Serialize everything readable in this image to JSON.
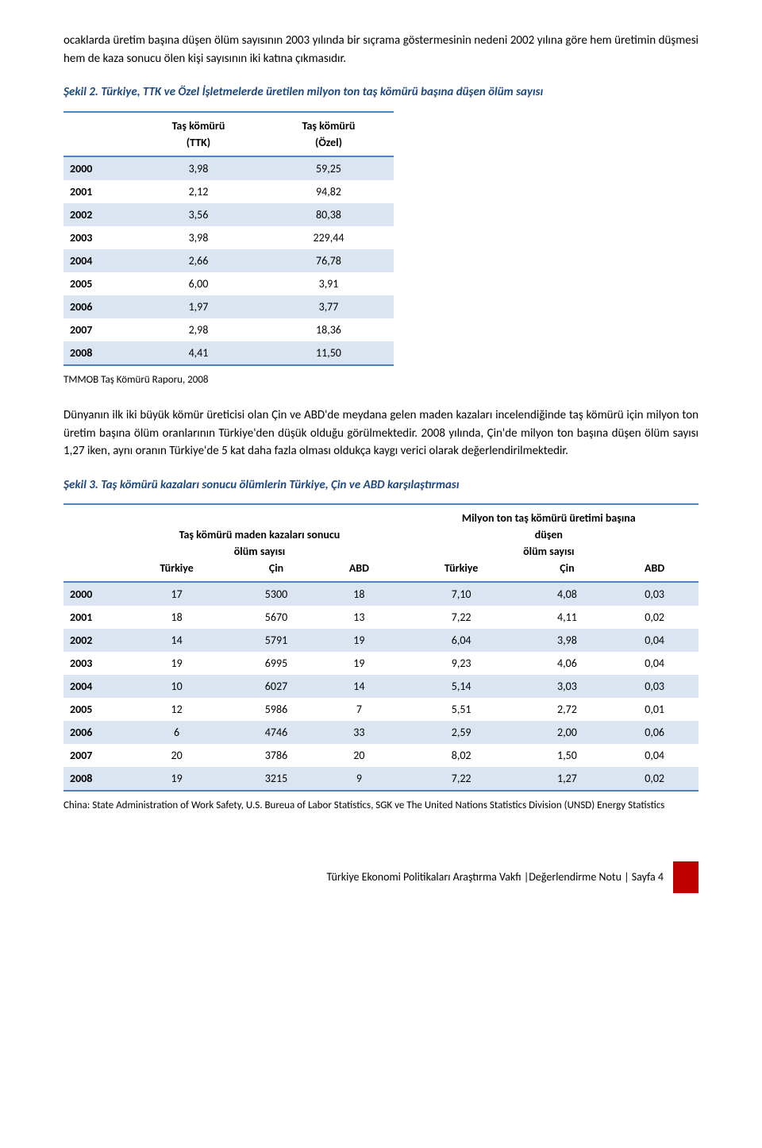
{
  "intro_para": "ocaklarda üretim başına düşen ölüm sayısının 2003 yılında bir sıçrama göstermesinin nedeni 2002 yılına göre hem üretimin düşmesi hem de kaza sonucu ölen kişi sayısının iki katına çıkmasıdır.",
  "fig2": {
    "label": "Şekil 2.",
    "title": " Türkiye, TTK ve Özel İşletmelerde üretilen milyon ton taş kömürü başına düşen ölüm sayısı",
    "col1": "Taş kömürü\n(TTK)",
    "col2": "Taş kömürü\n(Özel)",
    "rows": [
      {
        "year": "2000",
        "a": "3,98",
        "b": "59,25"
      },
      {
        "year": "2001",
        "a": "2,12",
        "b": "94,82"
      },
      {
        "year": "2002",
        "a": "3,56",
        "b": "80,38"
      },
      {
        "year": "2003",
        "a": "3,98",
        "b": "229,44"
      },
      {
        "year": "2004",
        "a": "2,66",
        "b": "76,78"
      },
      {
        "year": "2005",
        "a": "6,00",
        "b": "3,91"
      },
      {
        "year": "2006",
        "a": "1,97",
        "b": "3,77"
      },
      {
        "year": "2007",
        "a": "2,98",
        "b": "18,36"
      },
      {
        "year": "2008",
        "a": "4,41",
        "b": "11,50"
      }
    ],
    "source": "TMMOB Taş Kömürü Raporu, 2008"
  },
  "mid_para": "Dünyanın ilk iki büyük kömür üreticisi olan Çin ve ABD'de meydana gelen maden kazaları incelendiğinde taş kömürü için milyon ton üretim başına ölüm oranlarının Türkiye'den düşük olduğu görülmektedir. 2008 yılında, Çin'de milyon ton başına düşen ölüm sayısı 1,27 iken, aynı oranın Türkiye'de 5 kat daha fazla olması oldukça kaygı verici olarak değerlendirilmektedir.",
  "fig3": {
    "label": "Şekil 3.",
    "title": " Taş kömürü kazaları sonucu ölümlerin Türkiye, Çin ve ABD karşılaştırması",
    "group1": "Taş kömürü maden kazaları sonucu\nölüm sayısı",
    "group2": "Milyon ton taş kömürü üretimi başına\ndüşen\nölüm sayısı",
    "sub": [
      "Türkiye",
      "Çin",
      "ABD",
      "Türkiye",
      "Çin",
      "ABD"
    ],
    "rows": [
      {
        "year": "2000",
        "c": [
          "17",
          "5300",
          "18",
          "7,10",
          "4,08",
          "0,03"
        ]
      },
      {
        "year": "2001",
        "c": [
          "18",
          "5670",
          "13",
          "7,22",
          "4,11",
          "0,02"
        ]
      },
      {
        "year": "2002",
        "c": [
          "14",
          "5791",
          "19",
          "6,04",
          "3,98",
          "0,04"
        ]
      },
      {
        "year": "2003",
        "c": [
          "19",
          "6995",
          "19",
          "9,23",
          "4,06",
          "0,04"
        ]
      },
      {
        "year": "2004",
        "c": [
          "10",
          "6027",
          "14",
          "5,14",
          "3,03",
          "0,03"
        ]
      },
      {
        "year": "2005",
        "c": [
          "12",
          "5986",
          "7",
          "5,51",
          "2,72",
          "0,01"
        ]
      },
      {
        "year": "2006",
        "c": [
          "6",
          "4746",
          "33",
          "2,59",
          "2,00",
          "0,06"
        ]
      },
      {
        "year": "2007",
        "c": [
          "20",
          "3786",
          "20",
          "8,02",
          "1,50",
          "0,04"
        ]
      },
      {
        "year": "2008",
        "c": [
          "19",
          "3215",
          "9",
          "7,22",
          "1,27",
          "0,02"
        ]
      }
    ],
    "source": "China: State Administration of Work Safety, U.S. Bureua of Labor Statistics, SGK ve The United Nations Statistics Division (UNSD) Energy Statistics"
  },
  "footer": "Türkiye Ekonomi Politikaları Araştırma Vakfı |Değerlendirme Notu | Sayfa 4"
}
